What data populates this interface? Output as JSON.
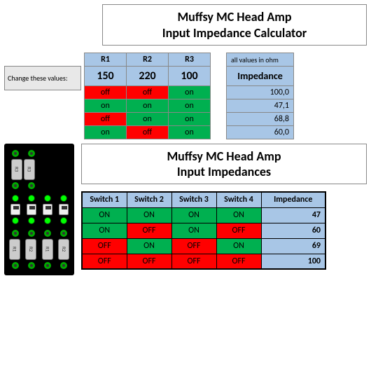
{
  "title1_line1": "Muffsy MC Head Amp",
  "title1_line2": "Input Impedance Calculator",
  "change_label": "Change these values:",
  "calc": {
    "headers": [
      "R1",
      "R2",
      "R3"
    ],
    "values": [
      "150",
      "220",
      "100"
    ],
    "rows": [
      [
        "off",
        "off",
        "on"
      ],
      [
        "on",
        "on",
        "on"
      ],
      [
        "off",
        "on",
        "on"
      ],
      [
        "on",
        "off",
        "on"
      ]
    ],
    "row_colors": [
      [
        "red",
        "red",
        "green"
      ],
      [
        "green",
        "green",
        "green"
      ],
      [
        "red",
        "green",
        "green"
      ],
      [
        "green",
        "red",
        "green"
      ]
    ]
  },
  "imp_note": "all values in ohm",
  "imp_header": "Impedance",
  "imp_values": [
    "100,0",
    "47,1",
    "68,8",
    "60,0"
  ],
  "pcb_labels": {
    "r1": "R1",
    "r2": "R2",
    "r3": "R3"
  },
  "title2_line1": "Muffsy MC Head Amp",
  "title2_line2": "Input Impedances",
  "sw": {
    "headers": [
      "Switch 1",
      "Switch 2",
      "Switch 3",
      "Switch 4"
    ],
    "imp_header": "Impedance",
    "rows": [
      {
        "cells": [
          "ON",
          "ON",
          "ON",
          "ON"
        ],
        "colors": [
          "green",
          "green",
          "green",
          "green"
        ],
        "imp": "47"
      },
      {
        "cells": [
          "ON",
          "OFF",
          "ON",
          "OFF"
        ],
        "colors": [
          "green",
          "red",
          "green",
          "red"
        ],
        "imp": "60"
      },
      {
        "cells": [
          "OFF",
          "ON",
          "OFF",
          "ON"
        ],
        "colors": [
          "red",
          "green",
          "red",
          "green"
        ],
        "imp": "69"
      },
      {
        "cells": [
          "OFF",
          "OFF",
          "OFF",
          "OFF"
        ],
        "colors": [
          "red",
          "red",
          "red",
          "red"
        ],
        "imp": "100"
      }
    ]
  },
  "colors": {
    "bg": "#ffffff",
    "header_bg": "#a8c6e6",
    "green": "#00b050",
    "red": "#ff0000",
    "border": "#888888"
  }
}
